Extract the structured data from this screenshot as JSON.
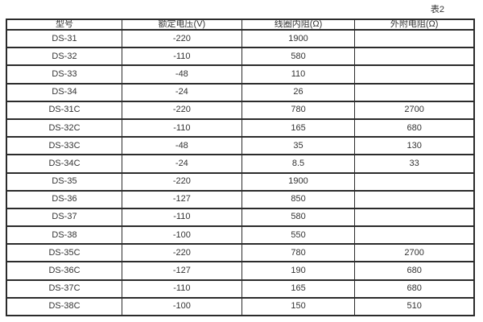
{
  "table_label": "表2",
  "table": {
    "headers": [
      "型号",
      "额定电压(V)",
      "线圈内阻(Ω)",
      "外附电阻(Ω)"
    ],
    "rows": [
      [
        "DS-31",
        "-220",
        "1900",
        ""
      ],
      [
        "DS-32",
        "-110",
        "580",
        ""
      ],
      [
        "DS-33",
        "-48",
        "110",
        ""
      ],
      [
        "DS-34",
        "-24",
        "26",
        ""
      ],
      [
        "DS-31C",
        "-220",
        "780",
        "2700"
      ],
      [
        "DS-32C",
        "-110",
        "165",
        "680"
      ],
      [
        "DS-33C",
        "-48",
        "35",
        "130"
      ],
      [
        "DS-34C",
        "-24",
        "8.5",
        "33"
      ],
      [
        "DS-35",
        "-220",
        "1900",
        ""
      ],
      [
        "DS-36",
        "-127",
        "850",
        ""
      ],
      [
        "DS-37",
        "-110",
        "580",
        ""
      ],
      [
        "DS-38",
        "-100",
        "550",
        ""
      ],
      [
        "DS-35C",
        "-220",
        "780",
        "2700"
      ],
      [
        "DS-36C",
        "-127",
        "190",
        "680"
      ],
      [
        "DS-37C",
        "-110",
        "165",
        "680"
      ],
      [
        "DS-38C",
        "-100",
        "150",
        "510"
      ]
    ]
  },
  "colors": {
    "border": "#2b2b2b",
    "text": "#333333",
    "background": "#ffffff"
  }
}
